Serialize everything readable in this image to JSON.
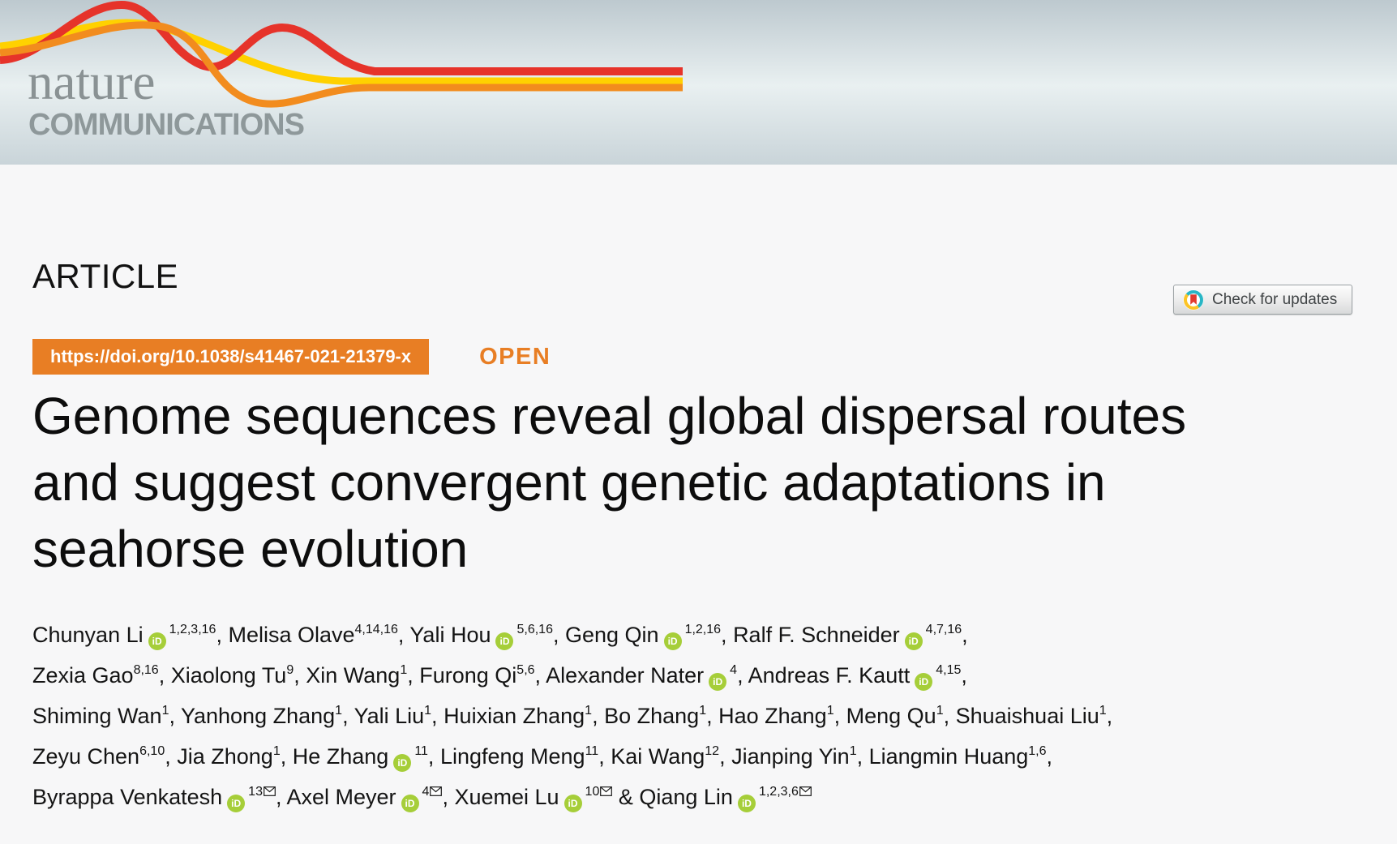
{
  "colors": {
    "brand_orange": "#e87e24",
    "orcid_green": "#a6ce39",
    "ribbon_red": "#e6332a",
    "ribbon_orange": "#f28c1e",
    "ribbon_yellow": "#ffd100",
    "logo_gray": "#8a9294",
    "header_top": "#bdc9cf",
    "header_mid": "#e9f0f1",
    "header_bottom": "#c9d4d9",
    "page_bg": "#f7f7f8",
    "text": "#101010"
  },
  "masthead": {
    "brand_name": "nature",
    "brand_sub": "COMMUNICATIONS"
  },
  "article": {
    "kicker": "ARTICLE",
    "doi_url": "https://doi.org/10.1038/s41467-021-21379-x",
    "open_label": "OPEN",
    "check_updates_label": "Check for updates"
  },
  "title": {
    "lines": [
      "Genome sequences reveal global dispersal routes",
      "and suggest convergent genetic adaptations in",
      "seahorse evolution"
    ]
  },
  "authors": {
    "orcid_badge_text": "iD",
    "lines": [
      [
        {
          "name": "Chunyan Li",
          "orcid": true,
          "sup": "1,2,3,16",
          "sep": ", "
        },
        {
          "name": "Melisa Olave",
          "sup": "4,14,16",
          "sep": ", "
        },
        {
          "name": "Yali Hou",
          "orcid": true,
          "sup": "5,6,16",
          "sep": ", "
        },
        {
          "name": "Geng Qin",
          "orcid": true,
          "sup": "1,2,16",
          "sep": ", "
        },
        {
          "name": "Ralf F. Schneider",
          "orcid": true,
          "sup": "4,7,16",
          "sep": ","
        }
      ],
      [
        {
          "name": "Zexia Gao",
          "sup": "8,16",
          "sep": ", "
        },
        {
          "name": "Xiaolong Tu",
          "sup": "9",
          "sep": ", "
        },
        {
          "name": "Xin Wang",
          "sup": "1",
          "sep": ", "
        },
        {
          "name": "Furong Qi",
          "sup": "5,6",
          "sep": ", "
        },
        {
          "name": "Alexander Nater",
          "orcid": true,
          "sup": "4",
          "sep": ", "
        },
        {
          "name": "Andreas F. Kautt",
          "orcid": true,
          "sup": "4,15",
          "sep": ","
        }
      ],
      [
        {
          "name": "Shiming Wan",
          "sup": "1",
          "sep": ", "
        },
        {
          "name": "Yanhong Zhang",
          "sup": "1",
          "sep": ", "
        },
        {
          "name": "Yali Liu",
          "sup": "1",
          "sep": ", "
        },
        {
          "name": "Huixian Zhang",
          "sup": "1",
          "sep": ", "
        },
        {
          "name": "Bo Zhang",
          "sup": "1",
          "sep": ", "
        },
        {
          "name": "Hao Zhang",
          "sup": "1",
          "sep": ", "
        },
        {
          "name": "Meng Qu",
          "sup": "1",
          "sep": ", "
        },
        {
          "name": "Shuaishuai Liu",
          "sup": "1",
          "sep": ","
        }
      ],
      [
        {
          "name": "Zeyu Chen",
          "sup": "6,10",
          "sep": ", "
        },
        {
          "name": "Jia Zhong",
          "sup": "1",
          "sep": ", "
        },
        {
          "name": "He Zhang",
          "orcid": true,
          "sup": "11",
          "sep": ", "
        },
        {
          "name": "Lingfeng Meng",
          "sup": "11",
          "sep": ", "
        },
        {
          "name": "Kai Wang",
          "sup": "12",
          "sep": ", "
        },
        {
          "name": "Jianping Yin",
          "sup": "1",
          "sep": ", "
        },
        {
          "name": "Liangmin Huang",
          "sup": "1,6",
          "sep": ","
        }
      ],
      [
        {
          "name": "Byrappa Venkatesh",
          "orcid": true,
          "sup": "13",
          "env": true,
          "sep": ", "
        },
        {
          "name": "Axel Meyer",
          "orcid": true,
          "sup": "4",
          "env": true,
          "sep": ", "
        },
        {
          "name": "Xuemei Lu",
          "orcid": true,
          "sup": "10",
          "env": true,
          "sep": " & "
        },
        {
          "name": "Qiang Lin",
          "orcid": true,
          "sup": "1,2,3,6",
          "env": true,
          "sep": ""
        }
      ]
    ]
  }
}
